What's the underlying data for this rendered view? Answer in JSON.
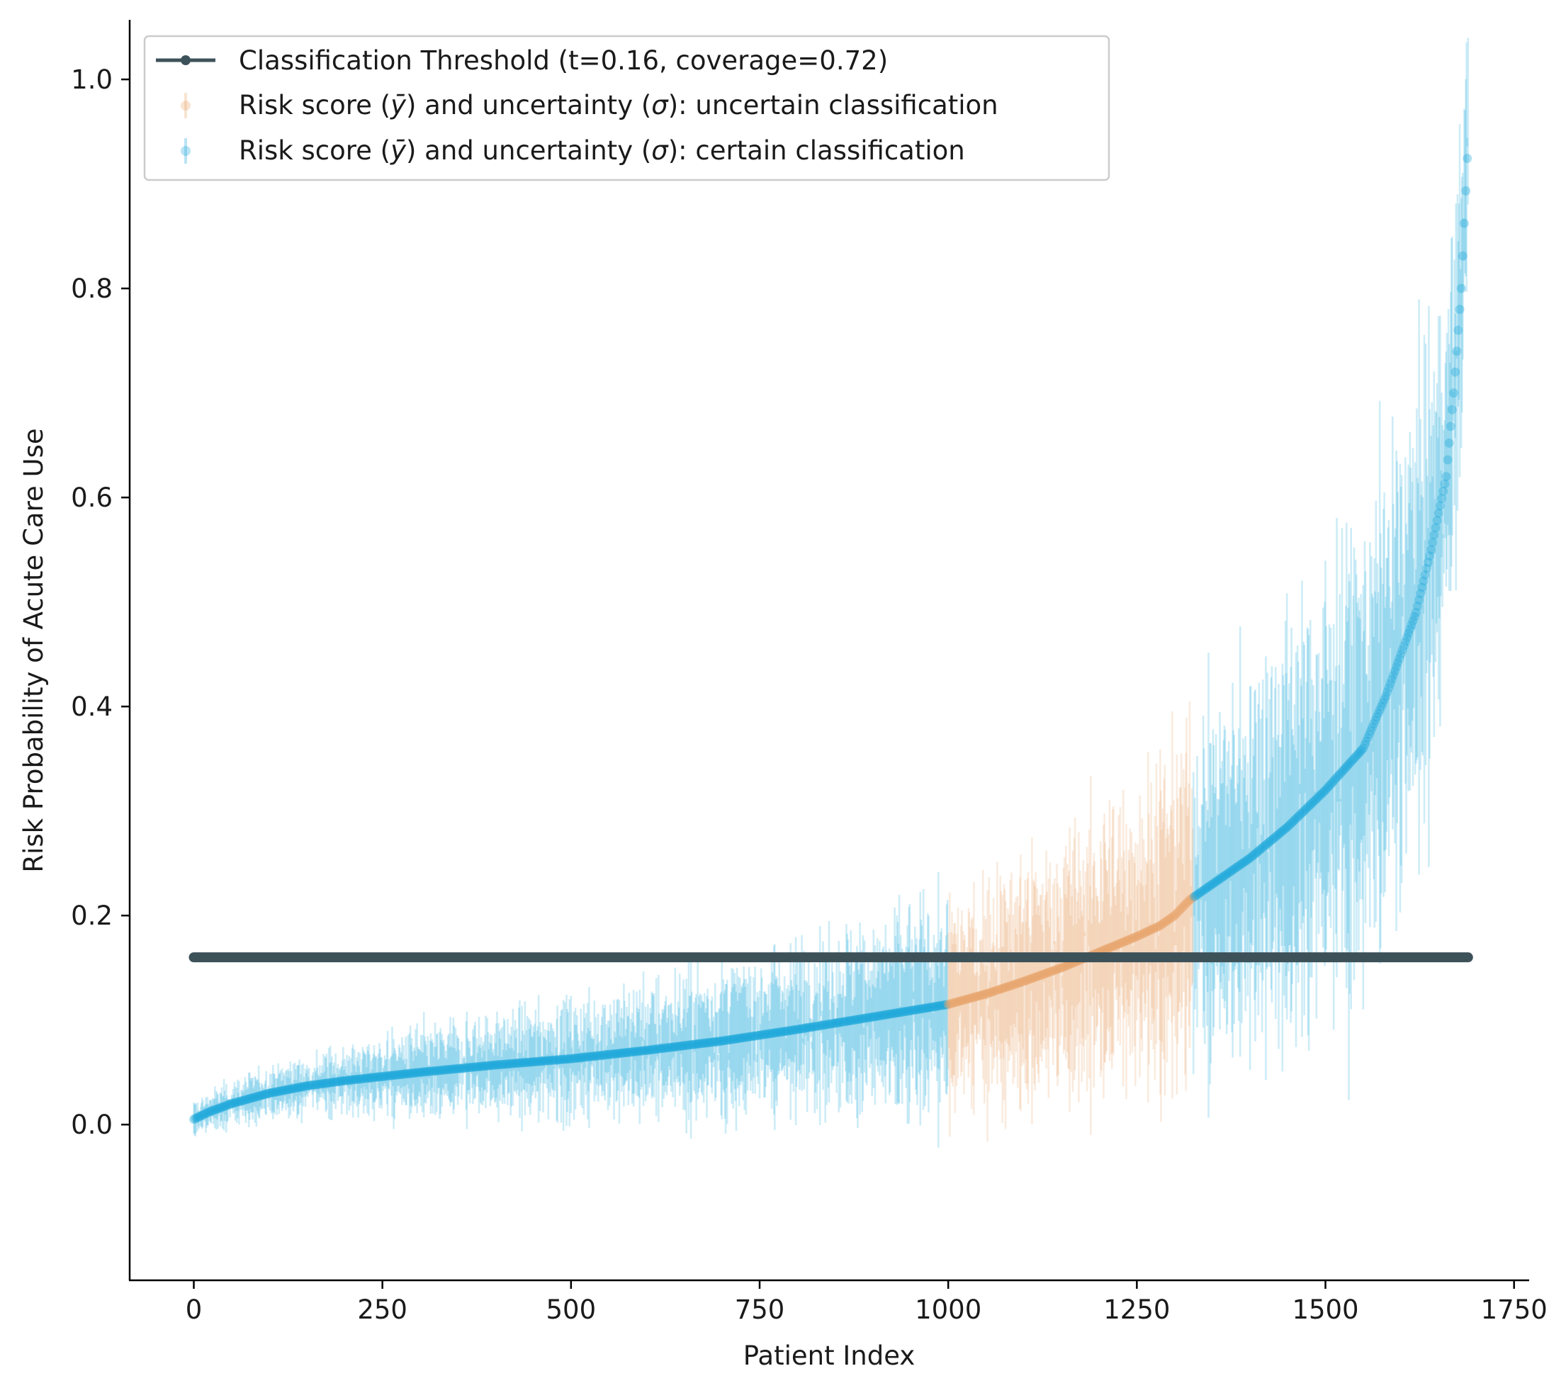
{
  "chart_data": {
    "type": "scatter",
    "title": "",
    "xlabel": "Patient Index",
    "ylabel": "Risk Probability of Acute Care Use",
    "xlim": [
      -85,
      1770
    ],
    "ylim": [
      -0.149,
      1.057
    ],
    "xticks": [
      0,
      250,
      500,
      750,
      1000,
      1250,
      1500,
      1750
    ],
    "xtick_labels": [
      "0",
      "250",
      "500",
      "750",
      "1000",
      "1250",
      "1500",
      "1750"
    ],
    "yticks": [
      0.0,
      0.2,
      0.4,
      0.6,
      0.8,
      1.0
    ],
    "ytick_labels": [
      "0.0",
      "0.2",
      "0.4",
      "0.6",
      "0.8",
      "1.0"
    ],
    "n_patients": 1690,
    "threshold": {
      "label": "Classification Threshold (t=0.16, coverage=0.72)",
      "value": 0.16,
      "x_range": [
        0,
        1689
      ],
      "color": "#3d5159"
    },
    "series": [
      {
        "name": "Risk score (ȳ) and uncertainty (σ): uncertain classification",
        "legend_prefix": "Risk score (",
        "legend_ybar": "ȳ",
        "legend_mid": ") and uncertainty (",
        "legend_sigma": "σ",
        "legend_suffix": "): uncertain classification",
        "color": "#e8a46a",
        "index_ranges": [
          [
            1000,
            1324
          ]
        ]
      },
      {
        "name": "Risk score (ȳ) and uncertainty (σ): certain classification",
        "legend_prefix": "Risk score (",
        "legend_ybar": "ȳ",
        "legend_mid": ") and uncertainty (",
        "legend_sigma": "σ",
        "legend_suffix": "): certain classification",
        "color": "#1aa7da",
        "index_ranges": [
          [
            0,
            999
          ],
          [
            1325,
            1689
          ]
        ]
      }
    ],
    "risk_curve": {
      "x": [
        0,
        20,
        50,
        100,
        150,
        200,
        300,
        400,
        500,
        600,
        700,
        800,
        900,
        1000,
        1050,
        1100,
        1150,
        1200,
        1250,
        1280,
        1300,
        1320,
        1350,
        1400,
        1450,
        1500,
        1550,
        1580,
        1600,
        1620,
        1640,
        1660,
        1670,
        1680,
        1689
      ],
      "y": [
        0.005,
        0.012,
        0.02,
        0.03,
        0.037,
        0.042,
        0.05,
        0.057,
        0.063,
        0.071,
        0.08,
        0.091,
        0.103,
        0.115,
        0.125,
        0.137,
        0.15,
        0.165,
        0.18,
        0.19,
        0.2,
        0.215,
        0.23,
        0.255,
        0.285,
        0.32,
        0.36,
        0.41,
        0.45,
        0.49,
        0.55,
        0.62,
        0.7,
        0.8,
        0.94
      ]
    },
    "uncertainty_sigma": {
      "x": [
        0,
        500,
        1000,
        1200,
        1400,
        1600,
        1689
      ],
      "sigma": [
        0.008,
        0.025,
        0.045,
        0.06,
        0.085,
        0.1,
        0.07
      ]
    }
  }
}
